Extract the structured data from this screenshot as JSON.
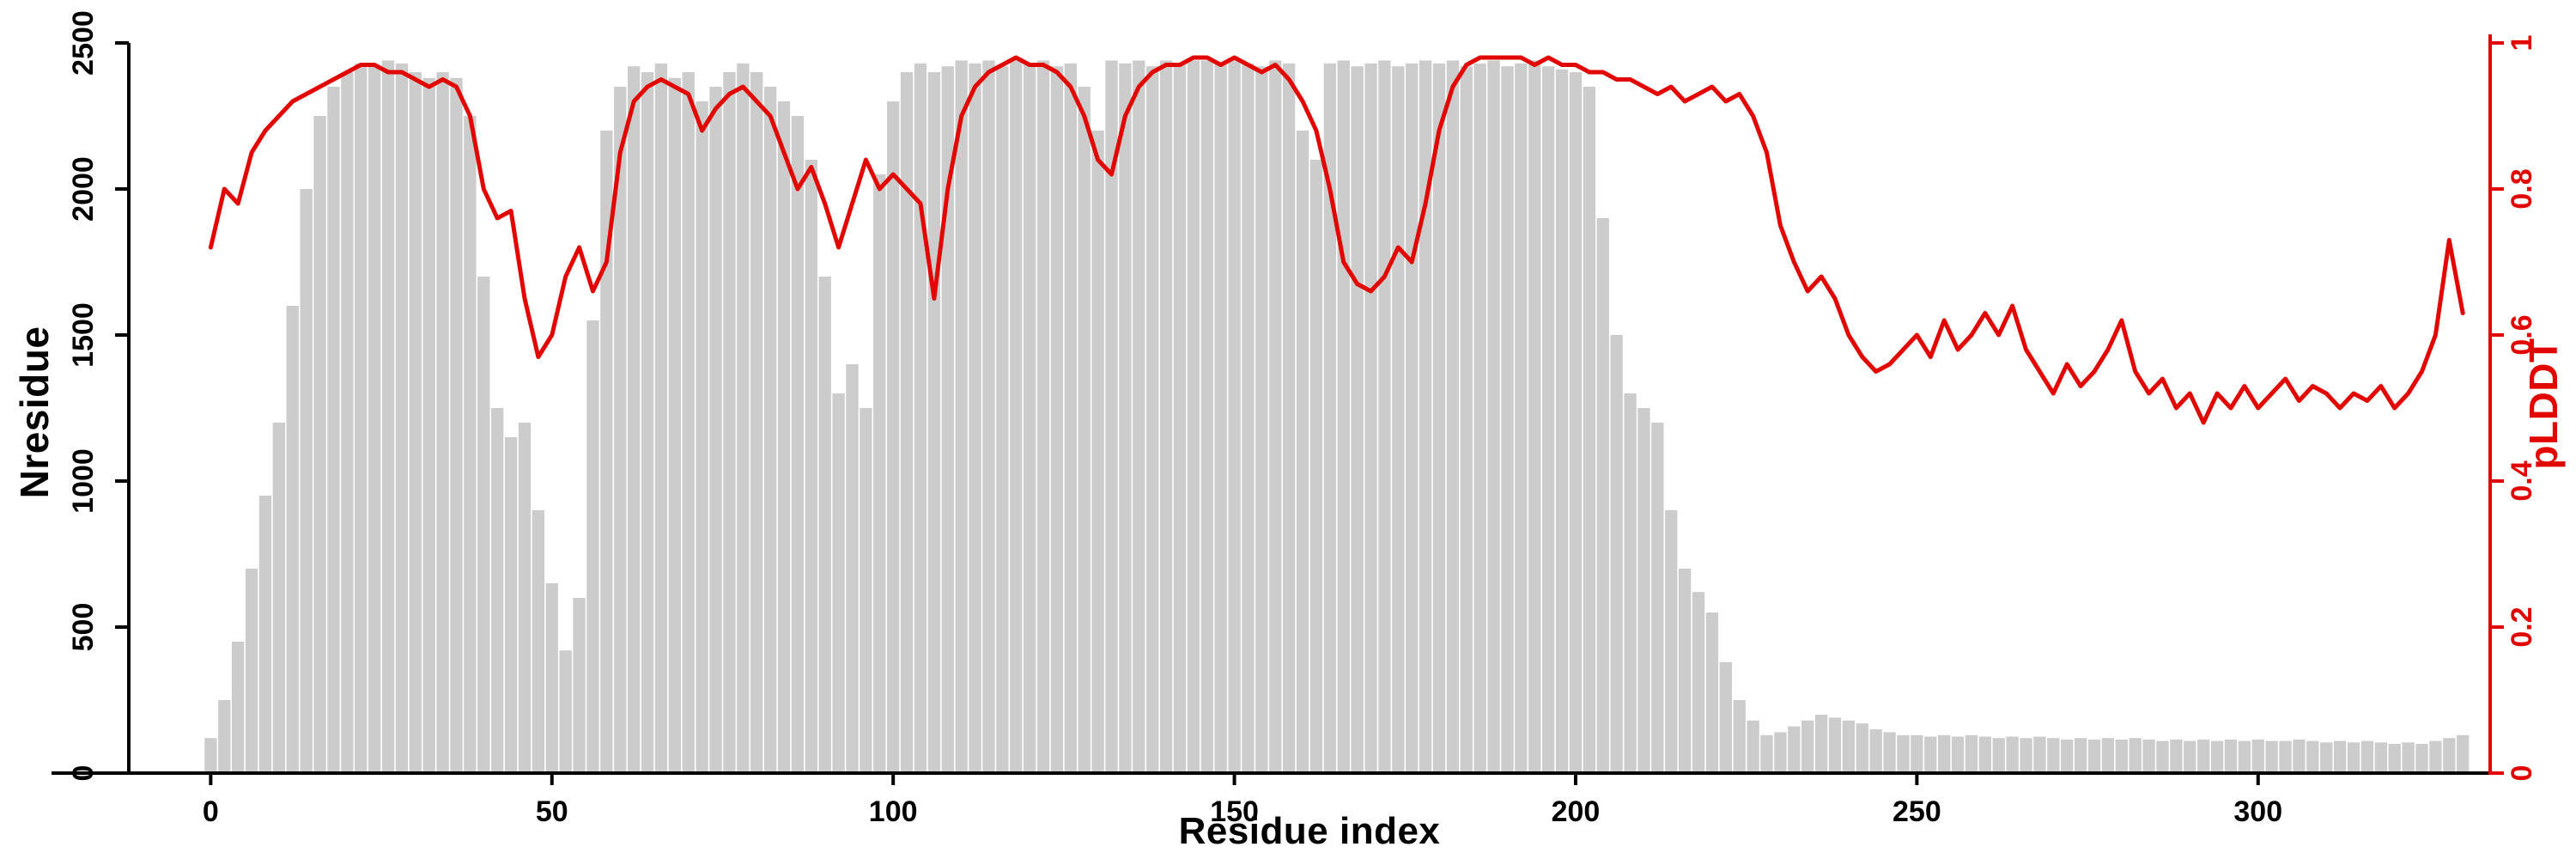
{
  "chart_data": {
    "type": "bar",
    "title": "",
    "xlabel": "Residue index",
    "ylabel_left": "Nresidue",
    "ylabel_right": "pLDDT",
    "bar_color": "#cccccc",
    "line_color": "#e10600",
    "axis_color": "#000000",
    "right_axis_color": "#e10600",
    "grid": false,
    "legend": "none",
    "axes": {
      "x": {
        "label": "Residue index",
        "ticks": [
          0,
          50,
          100,
          150,
          200,
          250,
          300
        ],
        "range": [
          -12,
          334
        ]
      },
      "y_left": {
        "label": "Nresidue",
        "ticks": [
          0,
          500,
          1000,
          1500,
          2000,
          2500
        ],
        "range": [
          0,
          2500
        ]
      },
      "y_right": {
        "label": "pLDDT",
        "ticks": [
          0,
          0.2,
          0.4,
          0.6,
          0.8,
          1
        ],
        "range": [
          0,
          1
        ]
      }
    },
    "x": [
      0,
      2,
      4,
      6,
      8,
      10,
      12,
      14,
      16,
      18,
      20,
      22,
      24,
      26,
      28,
      30,
      32,
      34,
      36,
      38,
      40,
      42,
      44,
      46,
      48,
      50,
      52,
      54,
      56,
      58,
      60,
      62,
      64,
      66,
      68,
      70,
      72,
      74,
      76,
      78,
      80,
      82,
      84,
      86,
      88,
      90,
      92,
      94,
      96,
      98,
      100,
      102,
      104,
      106,
      108,
      110,
      112,
      114,
      116,
      118,
      120,
      122,
      124,
      126,
      128,
      130,
      132,
      134,
      136,
      138,
      140,
      142,
      144,
      146,
      148,
      150,
      152,
      154,
      156,
      158,
      160,
      162,
      164,
      166,
      168,
      170,
      172,
      174,
      176,
      178,
      180,
      182,
      184,
      186,
      188,
      190,
      192,
      194,
      196,
      198,
      200,
      202,
      204,
      206,
      208,
      210,
      212,
      214,
      216,
      218,
      220,
      222,
      224,
      226,
      228,
      230,
      232,
      234,
      236,
      238,
      240,
      242,
      244,
      246,
      248,
      250,
      252,
      254,
      256,
      258,
      260,
      262,
      264,
      266,
      268,
      270,
      272,
      274,
      276,
      278,
      280,
      282,
      284,
      286,
      288,
      290,
      292,
      294,
      296,
      298,
      300,
      302,
      304,
      306,
      308,
      310,
      312,
      314,
      316,
      318,
      320,
      322,
      324,
      326,
      328,
      330
    ],
    "series": [
      {
        "name": "Nresidue",
        "type": "bar",
        "axis": "left",
        "values": [
          120,
          250,
          450,
          700,
          950,
          1200,
          1600,
          2000,
          2250,
          2350,
          2400,
          2430,
          2420,
          2440,
          2430,
          2400,
          2380,
          2400,
          2380,
          2250,
          1700,
          1250,
          1150,
          1200,
          900,
          650,
          420,
          600,
          1550,
          2200,
          2350,
          2420,
          2400,
          2430,
          2380,
          2400,
          2300,
          2350,
          2400,
          2430,
          2400,
          2350,
          2300,
          2250,
          2100,
          1700,
          1300,
          1400,
          1250,
          2050,
          2300,
          2400,
          2430,
          2400,
          2420,
          2440,
          2430,
          2440,
          2420,
          2440,
          2430,
          2440,
          2420,
          2430,
          2350,
          2200,
          2440,
          2430,
          2440,
          2420,
          2440,
          2430,
          2440,
          2440,
          2430,
          2440,
          2430,
          2420,
          2440,
          2430,
          2200,
          2100,
          2430,
          2440,
          2420,
          2430,
          2440,
          2420,
          2430,
          2440,
          2430,
          2440,
          2420,
          2430,
          2440,
          2420,
          2430,
          2440,
          2420,
          2410,
          2400,
          2350,
          1900,
          1500,
          1300,
          1250,
          1200,
          900,
          700,
          620,
          550,
          380,
          250,
          180,
          130,
          140,
          160,
          180,
          200,
          190,
          180,
          170,
          150,
          140,
          130,
          130,
          125,
          130,
          125,
          130,
          125,
          120,
          125,
          120,
          125,
          120,
          115,
          120,
          115,
          120,
          115,
          120,
          115,
          110,
          115,
          110,
          115,
          110,
          115,
          110,
          115,
          110,
          110,
          115,
          110,
          105,
          110,
          105,
          110,
          105,
          100,
          105,
          100,
          110,
          120,
          130
        ]
      },
      {
        "name": "pLDDT",
        "type": "line",
        "axis": "right",
        "values": [
          0.72,
          0.8,
          0.78,
          0.85,
          0.88,
          0.9,
          0.92,
          0.93,
          0.94,
          0.95,
          0.96,
          0.97,
          0.97,
          0.96,
          0.96,
          0.95,
          0.94,
          0.95,
          0.94,
          0.9,
          0.8,
          0.76,
          0.77,
          0.65,
          0.57,
          0.6,
          0.68,
          0.72,
          0.66,
          0.7,
          0.85,
          0.92,
          0.94,
          0.95,
          0.94,
          0.93,
          0.88,
          0.91,
          0.93,
          0.94,
          0.92,
          0.9,
          0.85,
          0.8,
          0.83,
          0.78,
          0.72,
          0.78,
          0.84,
          0.8,
          0.82,
          0.8,
          0.78,
          0.65,
          0.8,
          0.9,
          0.94,
          0.96,
          0.97,
          0.98,
          0.97,
          0.97,
          0.96,
          0.94,
          0.9,
          0.84,
          0.82,
          0.9,
          0.94,
          0.96,
          0.97,
          0.97,
          0.98,
          0.98,
          0.97,
          0.98,
          0.97,
          0.96,
          0.97,
          0.95,
          0.92,
          0.88,
          0.8,
          0.7,
          0.67,
          0.66,
          0.68,
          0.72,
          0.7,
          0.78,
          0.88,
          0.94,
          0.97,
          0.98,
          0.98,
          0.98,
          0.98,
          0.97,
          0.98,
          0.97,
          0.97,
          0.96,
          0.96,
          0.95,
          0.95,
          0.94,
          0.93,
          0.94,
          0.92,
          0.93,
          0.94,
          0.92,
          0.93,
          0.9,
          0.85,
          0.75,
          0.7,
          0.66,
          0.68,
          0.65,
          0.6,
          0.57,
          0.55,
          0.56,
          0.58,
          0.6,
          0.57,
          0.62,
          0.58,
          0.6,
          0.63,
          0.6,
          0.64,
          0.58,
          0.55,
          0.52,
          0.56,
          0.53,
          0.55,
          0.58,
          0.62,
          0.55,
          0.52,
          0.54,
          0.5,
          0.52,
          0.48,
          0.52,
          0.5,
          0.53,
          0.5,
          0.52,
          0.54,
          0.51,
          0.53,
          0.52,
          0.5,
          0.52,
          0.51,
          0.53,
          0.5,
          0.52,
          0.55,
          0.6,
          0.73,
          0.63
        ]
      }
    ]
  }
}
